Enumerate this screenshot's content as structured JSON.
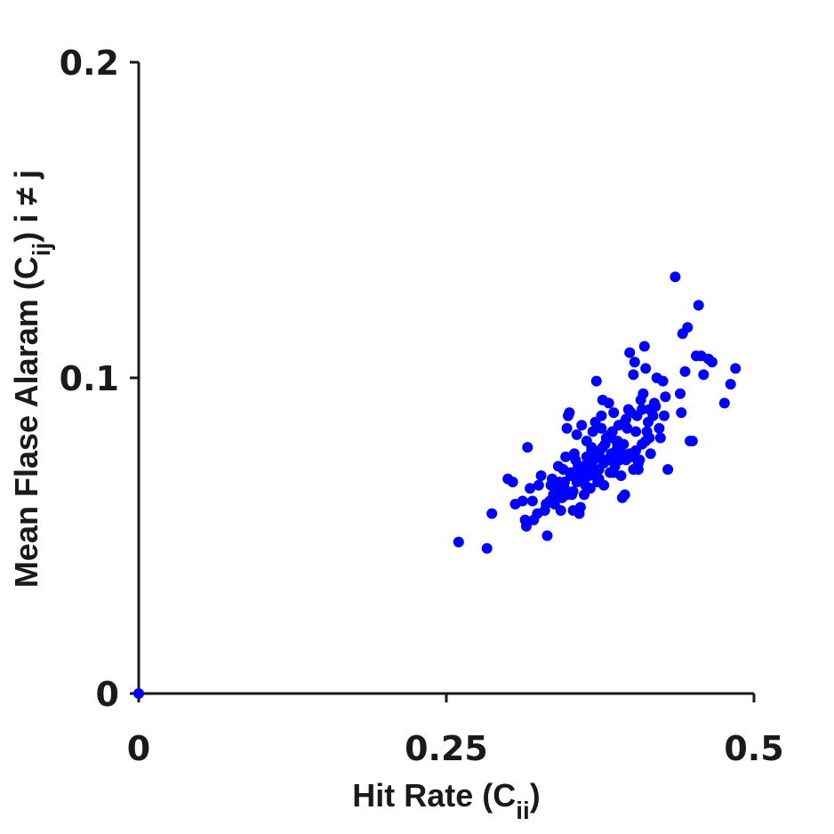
{
  "chart_data": {
    "type": "scatter",
    "title": "",
    "xlabel": "Hit Rate (C",
    "xlabel_sub": "ii",
    "xlabel_suffix": ")",
    "ylabel": "Mean Flase Alaram (C",
    "ylabel_sub": "ij",
    "ylabel_suffix": ") i ≠ j",
    "xlim": [
      0,
      0.5
    ],
    "ylim": [
      0,
      0.2
    ],
    "xticks": [
      0,
      0.25,
      0.5
    ],
    "xtick_labels": [
      "0",
      "0.25",
      "0.5"
    ],
    "yticks": [
      0,
      0.1,
      0.2
    ],
    "ytick_labels": [
      "0",
      "0.1",
      "0.2"
    ],
    "grid": false,
    "marker_color": "#0000ff",
    "series": [
      {
        "x": [
          0.0,
          0.26,
          0.283,
          0.287,
          0.3,
          0.304,
          0.306,
          0.312,
          0.314,
          0.315,
          0.316,
          0.318,
          0.32,
          0.321,
          0.324,
          0.325,
          0.327,
          0.33,
          0.332,
          0.334,
          0.335,
          0.336,
          0.337,
          0.338,
          0.34,
          0.341,
          0.342,
          0.343,
          0.344,
          0.345,
          0.346,
          0.347,
          0.348,
          0.349,
          0.35,
          0.351,
          0.352,
          0.353,
          0.354,
          0.355,
          0.356,
          0.357,
          0.358,
          0.359,
          0.36,
          0.361,
          0.362,
          0.363,
          0.364,
          0.365,
          0.366,
          0.367,
          0.368,
          0.369,
          0.37,
          0.371,
          0.372,
          0.373,
          0.374,
          0.375,
          0.376,
          0.377,
          0.378,
          0.379,
          0.38,
          0.381,
          0.382,
          0.383,
          0.384,
          0.385,
          0.386,
          0.387,
          0.388,
          0.389,
          0.39,
          0.391,
          0.392,
          0.393,
          0.394,
          0.395,
          0.396,
          0.397,
          0.398,
          0.399,
          0.4,
          0.401,
          0.402,
          0.403,
          0.404,
          0.405,
          0.406,
          0.407,
          0.408,
          0.409,
          0.41,
          0.411,
          0.412,
          0.413,
          0.414,
          0.415,
          0.416,
          0.418,
          0.42,
          0.421,
          0.423,
          0.424,
          0.426,
          0.427,
          0.428,
          0.43,
          0.436,
          0.44,
          0.441,
          0.442,
          0.444,
          0.446,
          0.448,
          0.45,
          0.453,
          0.455,
          0.457,
          0.459,
          0.463,
          0.466,
          0.476,
          0.481,
          0.485,
          0.351,
          0.361,
          0.368,
          0.374,
          0.379,
          0.386,
          0.393,
          0.356,
          0.364,
          0.371,
          0.378,
          0.384,
          0.391,
          0.399,
          0.406,
          0.346,
          0.353,
          0.367,
          0.376,
          0.389,
          0.402,
          0.412,
          0.331,
          0.339,
          0.358,
          0.372,
          0.383,
          0.396,
          0.404,
          0.415,
          0.348,
          0.362,
          0.377,
          0.387,
          0.395,
          0.409,
          0.419
        ],
        "y": [
          0.0,
          0.048,
          0.046,
          0.057,
          0.068,
          0.067,
          0.06,
          0.061,
          0.055,
          0.053,
          0.078,
          0.065,
          0.061,
          0.055,
          0.057,
          0.066,
          0.069,
          0.058,
          0.05,
          0.061,
          0.066,
          0.068,
          0.063,
          0.06,
          0.064,
          0.072,
          0.067,
          0.058,
          0.062,
          0.071,
          0.065,
          0.075,
          0.084,
          0.088,
          0.089,
          0.07,
          0.063,
          0.058,
          0.076,
          0.074,
          0.067,
          0.072,
          0.057,
          0.059,
          0.085,
          0.067,
          0.063,
          0.066,
          0.08,
          0.071,
          0.069,
          0.065,
          0.078,
          0.083,
          0.074,
          0.086,
          0.099,
          0.067,
          0.071,
          0.077,
          0.088,
          0.093,
          0.066,
          0.079,
          0.081,
          0.074,
          0.092,
          0.07,
          0.076,
          0.083,
          0.089,
          0.072,
          0.077,
          0.08,
          0.085,
          0.074,
          0.069,
          0.062,
          0.079,
          0.063,
          0.074,
          0.084,
          0.09,
          0.108,
          0.089,
          0.075,
          0.101,
          0.105,
          0.083,
          0.088,
          0.071,
          0.074,
          0.093,
          0.079,
          0.095,
          0.11,
          0.103,
          0.083,
          0.086,
          0.09,
          0.076,
          0.088,
          0.091,
          0.1,
          0.084,
          0.081,
          0.099,
          0.088,
          0.094,
          0.071,
          0.132,
          0.095,
          0.089,
          0.114,
          0.102,
          0.116,
          0.08,
          0.08,
          0.107,
          0.123,
          0.107,
          0.101,
          0.106,
          0.105,
          0.092,
          0.098,
          0.103,
          0.069,
          0.072,
          0.077,
          0.068,
          0.074,
          0.07,
          0.076,
          0.082,
          0.075,
          0.069,
          0.073,
          0.081,
          0.078,
          0.076,
          0.073,
          0.067,
          0.064,
          0.072,
          0.084,
          0.079,
          0.071,
          0.08,
          0.06,
          0.066,
          0.069,
          0.075,
          0.082,
          0.087,
          0.077,
          0.081,
          0.063,
          0.07,
          0.078,
          0.073,
          0.086,
          0.09,
          0.092
        ]
      }
    ]
  }
}
